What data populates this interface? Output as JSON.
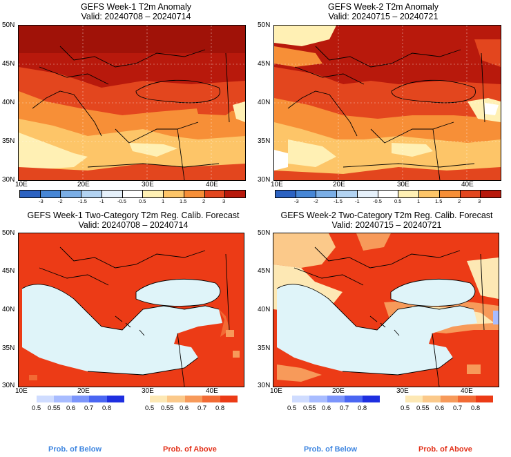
{
  "panels": [
    {
      "title": "GEFS Week-1 T2m Anomaly",
      "valid": "Valid: 20240708 – 20240714"
    },
    {
      "title": "GEFS Week-2 T2m Anomaly",
      "valid": "Valid: 20240715 – 20240721"
    },
    {
      "title": "GEFS Week-1 Two-Category T2m Reg. Calib. Forecast",
      "valid": "Valid: 20240708 – 20240714"
    },
    {
      "title": "GEFS Week-2 Two-Category T2m Reg. Calib. Forecast",
      "valid": "Valid: 20240715 – 20240721"
    }
  ],
  "lat_labels": [
    "50N",
    "45N",
    "40N",
    "35N",
    "30N"
  ],
  "lon_labels": [
    "10E",
    "20E",
    "30E",
    "40E"
  ],
  "anomaly_colorbar": {
    "labels": [
      "-3",
      "-2",
      "-1.5",
      "-1",
      "-0.5",
      "0.5",
      "1",
      "1.5",
      "2",
      "3"
    ],
    "colors": [
      "#2b62c2",
      "#4686d6",
      "#7aaee6",
      "#b2d3f2",
      "#e6f1fb",
      "#ffffff",
      "#fff0b4",
      "#fdc568",
      "#f78f37",
      "#e3461e",
      "#b8190c"
    ]
  },
  "prob_below": {
    "labels": [
      "0.5",
      "0.55",
      "0.6",
      "0.7",
      "0.8"
    ],
    "colors": [
      "#cfdcff",
      "#a8bcff",
      "#7c95fb",
      "#4a66f2",
      "#1e2fe0"
    ]
  },
  "prob_above": {
    "labels": [
      "0.5",
      "0.55",
      "0.6",
      "0.7",
      "0.8"
    ],
    "colors": [
      "#fde8b4",
      "#fbc98a",
      "#f79a5a",
      "#f26a34",
      "#ec3b16"
    ]
  },
  "legend_text": {
    "below": "Prob. of Below",
    "above": "Prob. of Above"
  },
  "colors": {
    "sea": "#dff4f9",
    "below_text": "#3f86e0",
    "above_text": "#e23019"
  }
}
